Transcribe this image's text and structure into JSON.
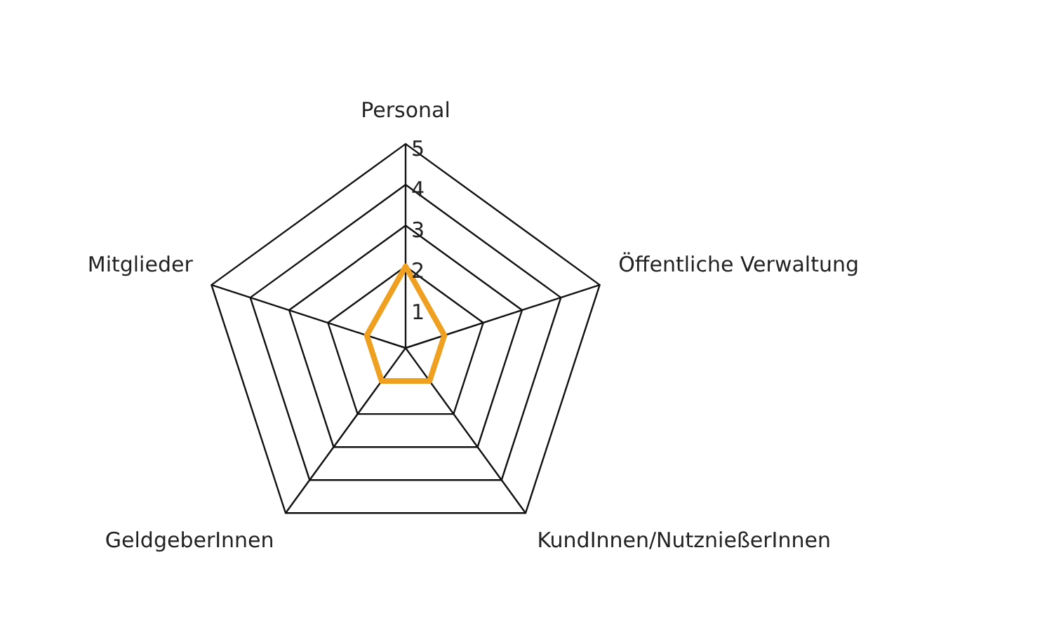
{
  "chart_data": {
    "type": "radar",
    "categories": [
      "Personal",
      "Öffentliche Verwaltung",
      "KundInnen/NutznießerInnen",
      "GeldgeberInnen",
      "Mitglieder"
    ],
    "series": [
      {
        "color": "#f0a020",
        "values": [
          2,
          1,
          1,
          1,
          1
        ]
      }
    ],
    "ylim": [
      0,
      5
    ],
    "yticks": [
      1,
      2,
      3,
      4,
      5
    ],
    "grid": true,
    "legend": false,
    "marker": "none"
  }
}
